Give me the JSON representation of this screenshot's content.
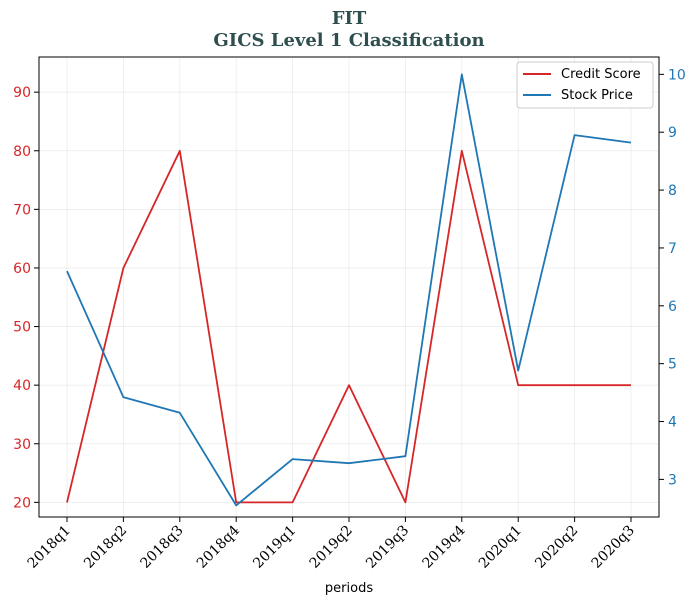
{
  "chart_data": {
    "type": "line",
    "title": "FIT",
    "subtitle": "GICS Level 1 Classification",
    "xlabel": "periods",
    "categories": [
      "2018q1",
      "2018q2",
      "2018q3",
      "2018q4",
      "2019q1",
      "2019q2",
      "2019q3",
      "2019q4",
      "2020q1",
      "2020q2",
      "2020q3"
    ],
    "y_left": {
      "ylim": [
        17.5,
        96
      ],
      "ticks": [
        20,
        30,
        40,
        50,
        60,
        70,
        80,
        90
      ],
      "color": "#d62728"
    },
    "y_right": {
      "ylim": [
        2.35,
        10.3
      ],
      "ticks": [
        3,
        4,
        5,
        6,
        7,
        8,
        9,
        10
      ],
      "color": "#1f77b4"
    },
    "series": [
      {
        "name": "Credit Score",
        "axis": "left",
        "color": "#d62728",
        "values": [
          20,
          60,
          80,
          20,
          20,
          40,
          20,
          80,
          40,
          40,
          40
        ]
      },
      {
        "name": "Stock Price",
        "axis": "right",
        "color": "#1f77b4",
        "values": [
          6.6,
          4.42,
          4.15,
          2.55,
          3.35,
          3.28,
          3.4,
          10.0,
          4.88,
          8.95,
          8.82
        ]
      }
    ],
    "grid": true,
    "legend_position": "top-right",
    "title_color": "#2f4f4f"
  }
}
